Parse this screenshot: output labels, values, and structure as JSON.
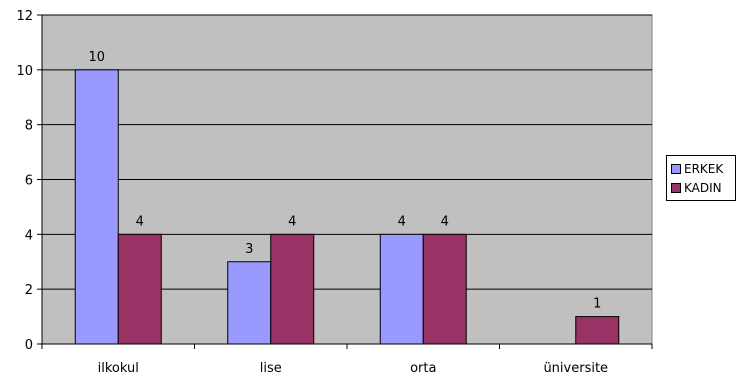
{
  "colors": {
    "plot_background": "#c0c0c0",
    "gridline": "#000000",
    "erkek": "#9999ff",
    "kadin": "#993366"
  },
  "chart_data": {
    "type": "bar",
    "categories": [
      "ilkokul",
      "lise",
      "orta",
      "üniversite"
    ],
    "series": [
      {
        "name": "ERKEK",
        "values": [
          10,
          3,
          4,
          0
        ],
        "labels": [
          "10",
          "3",
          "4",
          ""
        ]
      },
      {
        "name": "KADIN",
        "values": [
          4,
          4,
          4,
          1
        ],
        "labels": [
          "4",
          "4",
          "4",
          "1"
        ]
      }
    ],
    "title": "",
    "xlabel": "",
    "ylabel": "",
    "ylim": [
      0,
      12
    ],
    "yticks": [
      0,
      2,
      4,
      6,
      8,
      10,
      12
    ],
    "grid": true,
    "legend_position": "right"
  }
}
